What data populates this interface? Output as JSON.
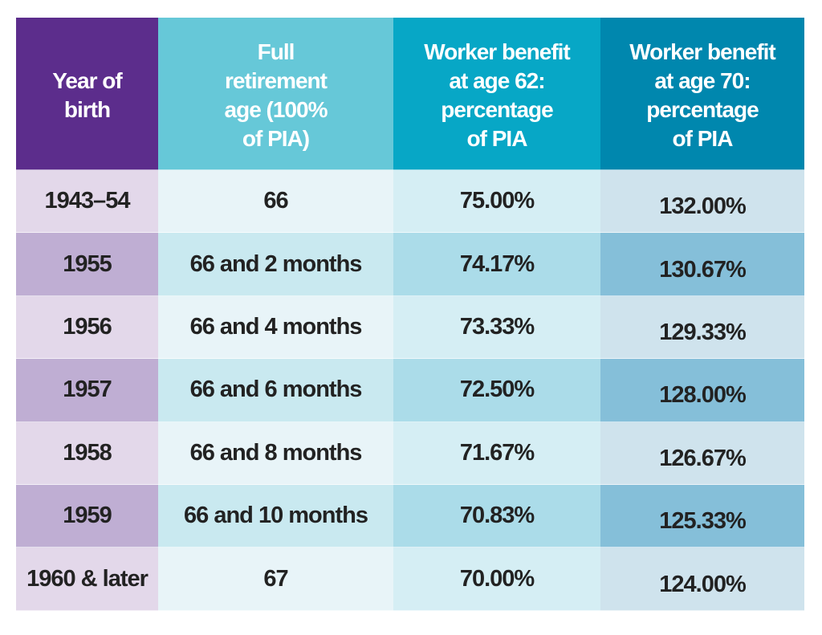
{
  "headers": [
    "Year of birth",
    "Full retirement age (100% of PIA)",
    "Worker benefit at age 62: percentage of PIA",
    "Worker benefit at age 70: percentage of PIA"
  ],
  "header_lines": [
    [
      "Year of",
      "birth"
    ],
    [
      "Full",
      "retirement",
      "age (100%",
      "of PIA)"
    ],
    [
      "Worker benefit",
      "at age 62:",
      "percentage",
      "of PIA"
    ],
    [
      "Worker benefit",
      "at age 70:",
      "percentage",
      "of PIA"
    ]
  ],
  "rows": [
    [
      "1943–54",
      "66",
      "75.00%",
      "132.00%"
    ],
    [
      "1955",
      "66 and 2 months",
      "74.17%",
      "130.67%"
    ],
    [
      "1956",
      "66 and 4 months",
      "73.33%",
      "129.33%"
    ],
    [
      "1957",
      "66 and 6 months",
      "72.50%",
      "128.00%"
    ],
    [
      "1958",
      "66 and 8 months",
      "71.67%",
      "126.67%"
    ],
    [
      "1959",
      "66 and 10 months",
      "70.83%",
      "125.33%"
    ],
    [
      "1960 & later",
      "67",
      "70.00%",
      "124.00%"
    ]
  ],
  "colors": {
    "header_purple": "#5c2d8c",
    "header_teal_light": "#66c8d8",
    "header_teal": "#07a7c6",
    "header_teal_dark": "#0087ae"
  }
}
